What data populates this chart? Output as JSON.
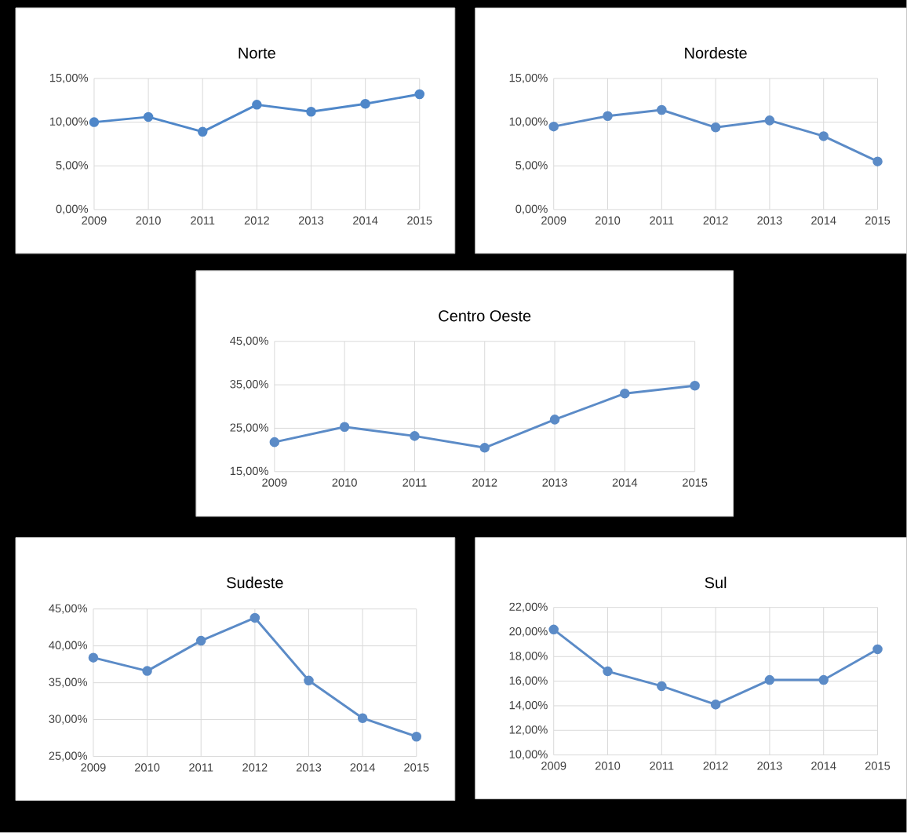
{
  "chart_data": [
    {
      "type": "line",
      "title": "Norte",
      "categories": [
        "2009",
        "2010",
        "2011",
        "2012",
        "2013",
        "2014",
        "2015"
      ],
      "values": [
        10.0,
        10.6,
        8.9,
        12.0,
        11.2,
        12.1,
        13.2
      ],
      "color": "#4f87c9",
      "ylim": [
        0,
        15
      ],
      "yticks": [
        {
          "value": 0,
          "label": "0,00%"
        },
        {
          "value": 5,
          "label": "5,00%"
        },
        {
          "value": 10,
          "label": "10,00%"
        },
        {
          "value": 15,
          "label": "15,00%"
        }
      ],
      "grid": true,
      "marker": "circle"
    },
    {
      "type": "line",
      "title": "Nordeste",
      "categories": [
        "2009",
        "2010",
        "2011",
        "2012",
        "2013",
        "2014",
        "2015"
      ],
      "values": [
        9.5,
        10.7,
        11.4,
        9.4,
        10.2,
        8.4,
        5.5
      ],
      "color": "#5b8bc7",
      "ylim": [
        0,
        15
      ],
      "yticks": [
        {
          "value": 0,
          "label": "0,00%"
        },
        {
          "value": 5,
          "label": "5,00%"
        },
        {
          "value": 10,
          "label": "10,00%"
        },
        {
          "value": 15,
          "label": "15,00%"
        }
      ],
      "grid": true,
      "marker": "circle"
    },
    {
      "type": "line",
      "title": "Centro Oeste",
      "categories": [
        "2009",
        "2010",
        "2011",
        "2012",
        "2013",
        "2014",
        "2015"
      ],
      "values": [
        21.8,
        25.3,
        23.2,
        20.5,
        27.0,
        33.0,
        34.8
      ],
      "color": "#5b8bc7",
      "ylim": [
        15,
        45
      ],
      "yticks": [
        {
          "value": 15,
          "label": "15,00%"
        },
        {
          "value": 25,
          "label": "25,00%"
        },
        {
          "value": 35,
          "label": "35,00%"
        },
        {
          "value": 45,
          "label": "45,00%"
        }
      ],
      "grid": true,
      "marker": "circle"
    },
    {
      "type": "line",
      "title": "Sudeste",
      "categories": [
        "2009",
        "2010",
        "2011",
        "2012",
        "2013",
        "2014",
        "2015"
      ],
      "values": [
        38.4,
        36.6,
        40.7,
        43.8,
        35.3,
        30.2,
        27.7
      ],
      "color": "#5b8bc7",
      "ylim": [
        25,
        45
      ],
      "yticks": [
        {
          "value": 25,
          "label": "25,00%"
        },
        {
          "value": 30,
          "label": "30,00%"
        },
        {
          "value": 35,
          "label": "35,00%"
        },
        {
          "value": 40,
          "label": "40,00%"
        },
        {
          "value": 45,
          "label": "45,00%"
        }
      ],
      "grid": true,
      "marker": "circle"
    },
    {
      "type": "line",
      "title": "Sul",
      "categories": [
        "2009",
        "2010",
        "2011",
        "2012",
        "2013",
        "2014",
        "2015"
      ],
      "values": [
        20.2,
        16.8,
        15.6,
        14.1,
        16.1,
        16.1,
        18.6
      ],
      "color": "#5b8bc7",
      "ylim": [
        10,
        22
      ],
      "yticks": [
        {
          "value": 10,
          "label": "10,00%"
        },
        {
          "value": 12,
          "label": "12,00%"
        },
        {
          "value": 14,
          "label": "14,00%"
        },
        {
          "value": 16,
          "label": "16,00%"
        },
        {
          "value": 18,
          "label": "18,00%"
        },
        {
          "value": 20,
          "label": "20,00%"
        },
        {
          "value": 22,
          "label": "22,00%"
        }
      ],
      "grid": true,
      "marker": "circle"
    }
  ]
}
